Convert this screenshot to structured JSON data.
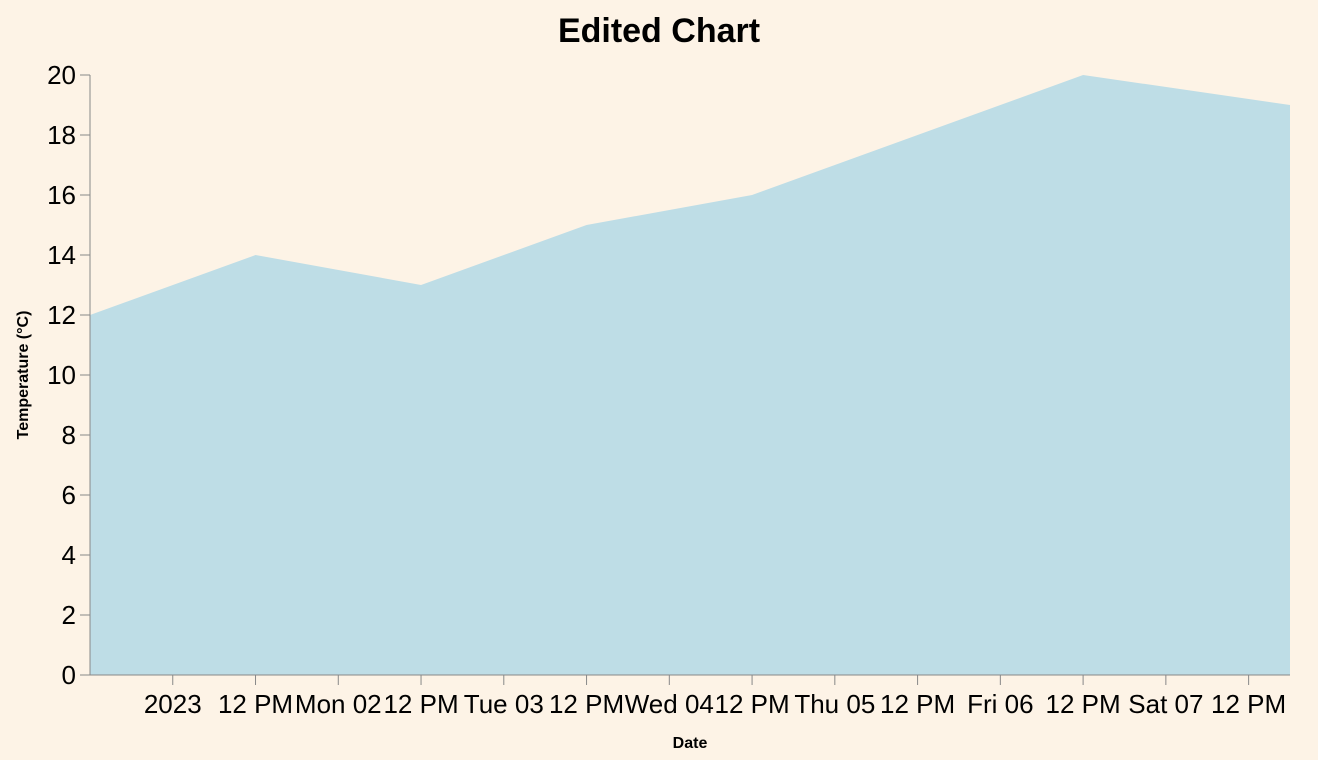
{
  "chart_data": {
    "type": "area",
    "title": "Edited Chart",
    "xlabel": "Date",
    "ylabel": "Temperature (°C)",
    "ylim": [
      0,
      20
    ],
    "x_range": [
      "2023-01-01T00:00",
      "2023-01-08T06:00"
    ],
    "yticks": [
      0,
      2,
      4,
      6,
      8,
      10,
      12,
      14,
      16,
      18,
      20
    ],
    "xticks": [
      {
        "t": "2023-01-01T12:00",
        "label": "2023"
      },
      {
        "t": "2023-01-02T00:00",
        "label": "12 PM"
      },
      {
        "t": "2023-01-02T12:00",
        "label": "Mon 02"
      },
      {
        "t": "2023-01-03T00:00",
        "label": "12 PM"
      },
      {
        "t": "2023-01-03T12:00",
        "label": "Tue 03"
      },
      {
        "t": "2023-01-04T00:00",
        "label": "12 PM"
      },
      {
        "t": "2023-01-04T12:00",
        "label": "Wed 04"
      },
      {
        "t": "2023-01-05T00:00",
        "label": "12 PM"
      },
      {
        "t": "2023-01-05T12:00",
        "label": "Thu 05"
      },
      {
        "t": "2023-01-06T00:00",
        "label": "12 PM"
      },
      {
        "t": "2023-01-06T12:00",
        "label": "Fri 06"
      },
      {
        "t": "2023-01-07T00:00",
        "label": "12 PM"
      },
      {
        "t": "2023-01-07T12:00",
        "label": "Sat 07"
      },
      {
        "t": "2023-01-08T00:00",
        "label": "12 PM"
      }
    ],
    "series": [
      {
        "x": [
          "2023-01-01T00:00",
          "2023-01-02T00:00",
          "2023-01-03T00:00",
          "2023-01-04T00:00",
          "2023-01-05T00:00",
          "2023-01-06T00:00",
          "2023-01-07T00:00",
          "2023-01-08T06:00"
        ],
        "values": [
          12,
          14,
          13,
          15,
          16,
          18,
          20,
          19
        ]
      }
    ],
    "grid": false,
    "legend": "none",
    "fill_color": "#bedde6",
    "background_color": "#fdf3e6"
  }
}
